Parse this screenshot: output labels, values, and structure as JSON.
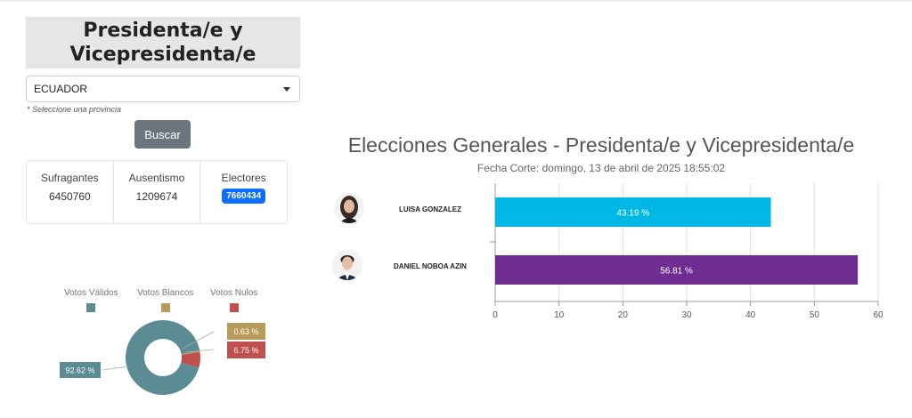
{
  "header": {
    "title_line1": "Presidenta/e y",
    "title_line2": "Vicepresidenta/e"
  },
  "filter": {
    "selected": "ECUADOR",
    "hint": "* Seleccione una provincia",
    "search_label": "Buscar"
  },
  "stats": {
    "sufragantes_label": "Sufragantes",
    "sufragantes_value": "6450760",
    "ausentismo_label": "Ausentismo",
    "ausentismo_value": "1209674",
    "electores_label": "Electores",
    "electores_value": "7660434"
  },
  "donut": {
    "legend": [
      {
        "label": "Votos Válidos",
        "color": "#5b8c94"
      },
      {
        "label": "Votos Blancos",
        "color": "#b89a5a"
      },
      {
        "label": "Votos Nulos",
        "color": "#c0504d"
      }
    ],
    "slices": [
      {
        "label": "92.62 %",
        "value": 92.62,
        "color": "#5b8c94"
      },
      {
        "label": "0.63 %",
        "value": 0.63,
        "color": "#b89a5a"
      },
      {
        "label": "6.75 %",
        "value": 6.75,
        "color": "#c0504d"
      }
    ]
  },
  "chart_data": {
    "type": "bar",
    "title": "Elecciones Generales - Presidenta/e y Vicepresidenta/e",
    "subtitle": "Fecha Corte: domingo, 13 de abril de 2025 18:55:02",
    "categories": [
      "LUISA GONZALEZ",
      "DANIEL NOBOA AZIN"
    ],
    "values": [
      43.19,
      56.81
    ],
    "value_labels": [
      "43.19 %",
      "56.81 %"
    ],
    "colors": [
      "#00b8e6",
      "#6f2c91"
    ],
    "xlim": [
      0,
      60
    ],
    "xticks": [
      0,
      10,
      20,
      30,
      40,
      50,
      60
    ],
    "orientation": "horizontal",
    "grid": true
  }
}
